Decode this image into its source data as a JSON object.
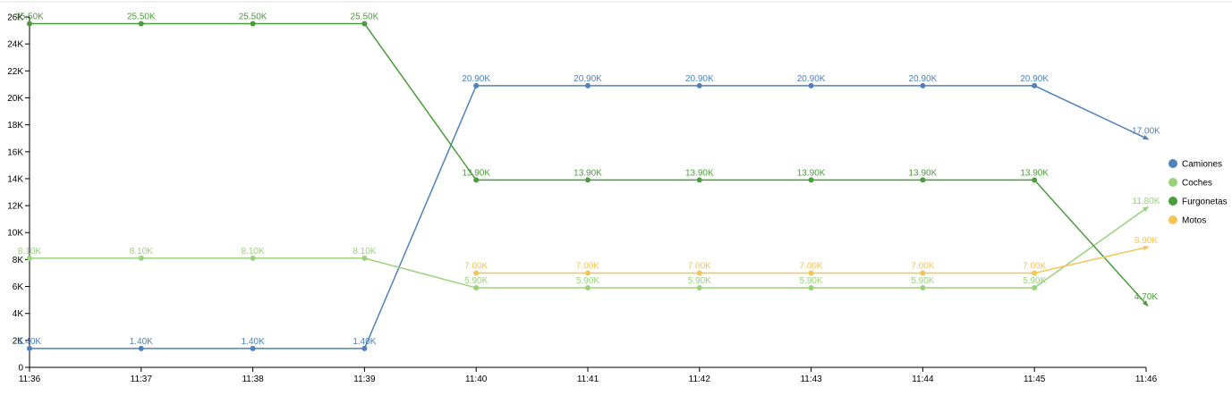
{
  "chart_data": {
    "type": "line",
    "title": "",
    "xlabel": "",
    "ylabel": "",
    "categories": [
      "11:36",
      "11:37",
      "11:38",
      "11:39",
      "11:40",
      "11:41",
      "11:42",
      "11:43",
      "11:44",
      "11:45",
      "11:46"
    ],
    "ylim": [
      0,
      26000
    ],
    "yticks": [
      {
        "value": 0,
        "label": "0"
      },
      {
        "value": 2000,
        "label": "2K"
      },
      {
        "value": 4000,
        "label": "4K"
      },
      {
        "value": 6000,
        "label": "6K"
      },
      {
        "value": 8000,
        "label": "8K"
      },
      {
        "value": 10000,
        "label": "10K"
      },
      {
        "value": 12000,
        "label": "12K"
      },
      {
        "value": 14000,
        "label": "14K"
      },
      {
        "value": 16000,
        "label": "16K"
      },
      {
        "value": 18000,
        "label": "18K"
      },
      {
        "value": 20000,
        "label": "20K"
      },
      {
        "value": 22000,
        "label": "22K"
      },
      {
        "value": 24000,
        "label": "24K"
      },
      {
        "value": 26000,
        "label": "26K"
      }
    ],
    "grid": false,
    "legend_position": "right",
    "series": [
      {
        "name": "Camiones",
        "color": "#4f81bd",
        "values": [
          1400,
          1400,
          1400,
          1400,
          20900,
          20900,
          20900,
          20900,
          20900,
          20900,
          17000
        ],
        "labels": [
          "1.40K",
          "1.40K",
          "1.40K",
          "1.40K",
          "20.90K",
          "20.90K",
          "20.90K",
          "20.90K",
          "20.90K",
          "20.90K",
          "17.00K"
        ]
      },
      {
        "name": "Coches",
        "color": "#98d27a",
        "values": [
          8100,
          8100,
          8100,
          8100,
          5900,
          5900,
          5900,
          5900,
          5900,
          5900,
          11800
        ],
        "labels": [
          "8.10K",
          "8.10K",
          "8.10K",
          "8.10K",
          "5.90K",
          "5.90K",
          "5.90K",
          "5.90K",
          "5.90K",
          "5.90K",
          "11.80K"
        ]
      },
      {
        "name": "Furgonetas",
        "color": "#4a9c3c",
        "values": [
          25500,
          25500,
          25500,
          25500,
          13900,
          13900,
          13900,
          13900,
          13900,
          13900,
          4700
        ],
        "labels": [
          "25.50K",
          "25.50K",
          "25.50K",
          "25.50K",
          "13.90K",
          "13.90K",
          "13.90K",
          "13.90K",
          "13.90K",
          "13.90K",
          "4.70K"
        ]
      },
      {
        "name": "Motos",
        "color": "#f5c454",
        "values": [
          null,
          null,
          null,
          null,
          7000,
          7000,
          7000,
          7000,
          7000,
          7000,
          8900
        ],
        "labels": [
          "",
          "",
          "",
          "",
          "7.00K",
          "7.00K",
          "7.00K",
          "7.00K",
          "7.00K",
          "7.00K",
          "8.90K"
        ]
      }
    ]
  }
}
